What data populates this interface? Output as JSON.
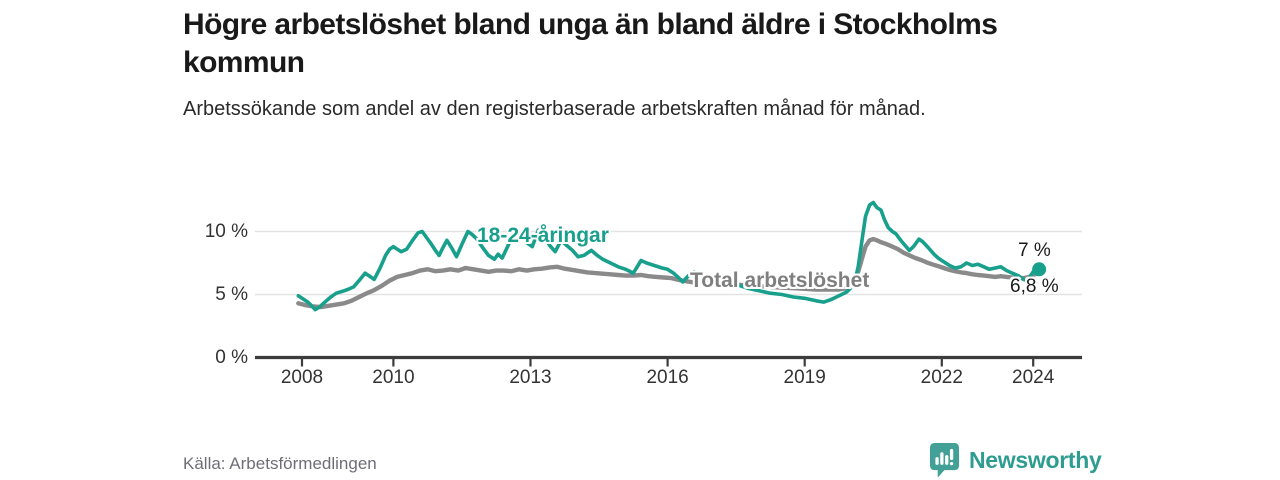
{
  "header": {
    "title": "Högre arbetslöshet bland unga än bland äldre i Stockholms kommun",
    "subtitle": "Arbetssökande som andel av den registerbaserade arbetskraften månad för månad."
  },
  "source": "Källa: Arbetsförmedlingen",
  "branding": {
    "name": "Newsworthy",
    "icon": "bar-chart-speech-bubble-icon",
    "word_color": "#2e9c90",
    "icon_color": "#43a096"
  },
  "colors": {
    "young": "#18a08d",
    "total": "#8a8a8a",
    "grid": "#e3e3e3",
    "axis": "#3c3c3c",
    "tick_text": "#333333"
  },
  "chart_data": {
    "type": "line",
    "title": "Högre arbetslöshet bland unga än bland äldre i Stockholms kommun",
    "unit": "%",
    "x_axis": {
      "ticks": [
        2008,
        2010,
        2013,
        2016,
        2019,
        2022,
        2024
      ],
      "range": [
        2007.9,
        2025.1
      ]
    },
    "y_axis": {
      "ticks": [
        {
          "value": 0,
          "label": "0 %"
        },
        {
          "value": 5,
          "label": "5 %"
        },
        {
          "value": 10,
          "label": "10 %"
        }
      ],
      "range": [
        0,
        13.3
      ],
      "grid": true
    },
    "legend": "inline-labels",
    "series": [
      {
        "name": "18-24-åringar",
        "color": "#18a08d",
        "latest_label": "7 %",
        "latest_value": 7.0,
        "end_dot": true,
        "points": [
          [
            2007.92,
            4.9
          ],
          [
            2008.0,
            4.7
          ],
          [
            2008.13,
            4.4
          ],
          [
            2008.21,
            4.1
          ],
          [
            2008.29,
            3.8
          ],
          [
            2008.38,
            4.0
          ],
          [
            2008.5,
            4.4
          ],
          [
            2008.63,
            4.8
          ],
          [
            2008.75,
            5.1
          ],
          [
            2008.88,
            5.25
          ],
          [
            2009.0,
            5.4
          ],
          [
            2009.13,
            5.6
          ],
          [
            2009.25,
            6.1
          ],
          [
            2009.38,
            6.7
          ],
          [
            2009.5,
            6.4
          ],
          [
            2009.58,
            6.2
          ],
          [
            2009.71,
            7.1
          ],
          [
            2009.83,
            8.1
          ],
          [
            2009.92,
            8.6
          ],
          [
            2010.0,
            8.8
          ],
          [
            2010.08,
            8.6
          ],
          [
            2010.17,
            8.4
          ],
          [
            2010.29,
            8.6
          ],
          [
            2010.42,
            9.3
          ],
          [
            2010.54,
            9.9
          ],
          [
            2010.63,
            10.0
          ],
          [
            2010.71,
            9.6
          ],
          [
            2010.83,
            9.0
          ],
          [
            2010.92,
            8.5
          ],
          [
            2011.0,
            8.1
          ],
          [
            2011.08,
            8.7
          ],
          [
            2011.17,
            9.3
          ],
          [
            2011.29,
            8.6
          ],
          [
            2011.38,
            8.0
          ],
          [
            2011.5,
            9.0
          ],
          [
            2011.63,
            10.0
          ],
          [
            2011.71,
            9.8
          ],
          [
            2011.83,
            9.4
          ],
          [
            2011.92,
            8.9
          ],
          [
            2012.0,
            8.5
          ],
          [
            2012.08,
            8.1
          ],
          [
            2012.21,
            7.8
          ],
          [
            2012.29,
            8.2
          ],
          [
            2012.38,
            7.9
          ],
          [
            2012.5,
            8.8
          ],
          [
            2012.63,
            9.9
          ],
          [
            2012.71,
            9.5
          ],
          [
            2012.83,
            9.6
          ],
          [
            2012.92,
            9.1
          ],
          [
            2013.04,
            8.8
          ],
          [
            2013.17,
            10.1
          ],
          [
            2013.29,
            9.6
          ],
          [
            2013.42,
            8.9
          ],
          [
            2013.54,
            8.4
          ],
          [
            2013.67,
            9.3
          ],
          [
            2013.79,
            8.9
          ],
          [
            2013.92,
            8.5
          ],
          [
            2014.04,
            8.0
          ],
          [
            2014.17,
            8.1
          ],
          [
            2014.33,
            8.5
          ],
          [
            2014.46,
            8.1
          ],
          [
            2014.58,
            7.8
          ],
          [
            2014.75,
            7.5
          ],
          [
            2014.92,
            7.2
          ],
          [
            2015.08,
            7.0
          ],
          [
            2015.25,
            6.7
          ],
          [
            2015.42,
            7.7
          ],
          [
            2015.54,
            7.5
          ],
          [
            2015.71,
            7.3
          ],
          [
            2015.88,
            7.1
          ],
          [
            2016.0,
            7.0
          ],
          [
            2016.13,
            6.7
          ],
          [
            2016.25,
            6.3
          ],
          [
            2016.33,
            6.0
          ],
          [
            2016.46,
            6.5
          ],
          [
            2016.58,
            6.8
          ],
          [
            2016.71,
            6.6
          ],
          [
            2016.88,
            6.4
          ],
          [
            2017.04,
            6.2
          ],
          [
            2017.25,
            6.0
          ],
          [
            2017.5,
            5.8
          ],
          [
            2017.75,
            5.5
          ],
          [
            2018.0,
            5.3
          ],
          [
            2018.25,
            5.1
          ],
          [
            2018.5,
            5.0
          ],
          [
            2018.75,
            4.8
          ],
          [
            2019.0,
            4.7
          ],
          [
            2019.25,
            4.5
          ],
          [
            2019.42,
            4.4
          ],
          [
            2019.58,
            4.6
          ],
          [
            2019.75,
            4.9
          ],
          [
            2019.92,
            5.2
          ],
          [
            2020.08,
            5.8
          ],
          [
            2020.17,
            7.2
          ],
          [
            2020.25,
            9.2
          ],
          [
            2020.33,
            11.2
          ],
          [
            2020.42,
            12.1
          ],
          [
            2020.5,
            12.3
          ],
          [
            2020.58,
            11.9
          ],
          [
            2020.67,
            11.7
          ],
          [
            2020.75,
            10.9
          ],
          [
            2020.83,
            10.3
          ],
          [
            2020.92,
            10.0
          ],
          [
            2021.0,
            9.8
          ],
          [
            2021.08,
            9.4
          ],
          [
            2021.17,
            9.0
          ],
          [
            2021.29,
            8.5
          ],
          [
            2021.38,
            8.8
          ],
          [
            2021.5,
            9.4
          ],
          [
            2021.58,
            9.2
          ],
          [
            2021.71,
            8.7
          ],
          [
            2021.83,
            8.2
          ],
          [
            2021.92,
            7.9
          ],
          [
            2022.04,
            7.6
          ],
          [
            2022.17,
            7.3
          ],
          [
            2022.29,
            7.1
          ],
          [
            2022.42,
            7.2
          ],
          [
            2022.54,
            7.5
          ],
          [
            2022.67,
            7.3
          ],
          [
            2022.79,
            7.4
          ],
          [
            2022.92,
            7.2
          ],
          [
            2023.04,
            7.0
          ],
          [
            2023.17,
            7.1
          ],
          [
            2023.29,
            7.2
          ],
          [
            2023.42,
            6.9
          ],
          [
            2023.54,
            6.7
          ],
          [
            2023.67,
            6.5
          ],
          [
            2023.79,
            6.2
          ],
          [
            2023.88,
            6.1
          ],
          [
            2023.96,
            6.6
          ],
          [
            2024.04,
            7.0
          ],
          [
            2024.13,
            7.0
          ]
        ]
      },
      {
        "name": "Total arbetslöshet",
        "color": "#8a8a8a",
        "latest_label": "6,8 %",
        "latest_value": 6.8,
        "end_dot": false,
        "points": [
          [
            2007.92,
            4.3
          ],
          [
            2008.08,
            4.15
          ],
          [
            2008.25,
            4.05
          ],
          [
            2008.42,
            4.0
          ],
          [
            2008.58,
            4.1
          ],
          [
            2008.75,
            4.2
          ],
          [
            2008.92,
            4.3
          ],
          [
            2009.08,
            4.5
          ],
          [
            2009.25,
            4.8
          ],
          [
            2009.42,
            5.1
          ],
          [
            2009.58,
            5.35
          ],
          [
            2009.75,
            5.7
          ],
          [
            2009.92,
            6.1
          ],
          [
            2010.08,
            6.4
          ],
          [
            2010.25,
            6.55
          ],
          [
            2010.42,
            6.7
          ],
          [
            2010.58,
            6.9
          ],
          [
            2010.75,
            7.0
          ],
          [
            2010.92,
            6.85
          ],
          [
            2011.08,
            6.9
          ],
          [
            2011.25,
            7.0
          ],
          [
            2011.42,
            6.9
          ],
          [
            2011.58,
            7.1
          ],
          [
            2011.75,
            7.0
          ],
          [
            2011.92,
            6.9
          ],
          [
            2012.08,
            6.8
          ],
          [
            2012.25,
            6.9
          ],
          [
            2012.42,
            6.9
          ],
          [
            2012.58,
            6.85
          ],
          [
            2012.75,
            7.0
          ],
          [
            2012.92,
            6.9
          ],
          [
            2013.08,
            7.0
          ],
          [
            2013.25,
            7.05
          ],
          [
            2013.42,
            7.15
          ],
          [
            2013.58,
            7.2
          ],
          [
            2013.75,
            7.05
          ],
          [
            2013.92,
            6.95
          ],
          [
            2014.08,
            6.85
          ],
          [
            2014.25,
            6.75
          ],
          [
            2014.42,
            6.7
          ],
          [
            2014.58,
            6.65
          ],
          [
            2014.75,
            6.6
          ],
          [
            2014.92,
            6.55
          ],
          [
            2015.08,
            6.5
          ],
          [
            2015.25,
            6.5
          ],
          [
            2015.42,
            6.55
          ],
          [
            2015.58,
            6.45
          ],
          [
            2015.75,
            6.4
          ],
          [
            2015.92,
            6.35
          ],
          [
            2016.08,
            6.3
          ],
          [
            2016.25,
            6.15
          ],
          [
            2016.42,
            6.05
          ],
          [
            2016.58,
            5.95
          ],
          [
            2016.75,
            5.95
          ],
          [
            2016.92,
            5.9
          ],
          [
            2017.25,
            5.85
          ],
          [
            2017.5,
            5.8
          ],
          [
            2017.75,
            5.7
          ],
          [
            2018.0,
            5.65
          ],
          [
            2018.25,
            5.6
          ],
          [
            2018.5,
            5.55
          ],
          [
            2018.75,
            5.5
          ],
          [
            2019.0,
            5.45
          ],
          [
            2019.25,
            5.4
          ],
          [
            2019.5,
            5.4
          ],
          [
            2019.75,
            5.4
          ],
          [
            2019.92,
            5.5
          ],
          [
            2020.08,
            5.9
          ],
          [
            2020.17,
            6.8
          ],
          [
            2020.25,
            7.8
          ],
          [
            2020.33,
            8.8
          ],
          [
            2020.42,
            9.3
          ],
          [
            2020.5,
            9.4
          ],
          [
            2020.58,
            9.3
          ],
          [
            2020.67,
            9.15
          ],
          [
            2020.79,
            9.0
          ],
          [
            2020.92,
            8.8
          ],
          [
            2021.04,
            8.6
          ],
          [
            2021.17,
            8.3
          ],
          [
            2021.29,
            8.1
          ],
          [
            2021.42,
            7.9
          ],
          [
            2021.54,
            7.75
          ],
          [
            2021.67,
            7.55
          ],
          [
            2021.79,
            7.4
          ],
          [
            2021.92,
            7.25
          ],
          [
            2022.04,
            7.1
          ],
          [
            2022.17,
            6.95
          ],
          [
            2022.29,
            6.85
          ],
          [
            2022.42,
            6.75
          ],
          [
            2022.54,
            6.7
          ],
          [
            2022.67,
            6.6
          ],
          [
            2022.79,
            6.55
          ],
          [
            2022.92,
            6.5
          ],
          [
            2023.04,
            6.45
          ],
          [
            2023.17,
            6.4
          ],
          [
            2023.29,
            6.45
          ],
          [
            2023.42,
            6.4
          ],
          [
            2023.54,
            6.35
          ],
          [
            2023.67,
            6.3
          ],
          [
            2023.79,
            6.3
          ],
          [
            2023.92,
            6.4
          ],
          [
            2024.04,
            6.6
          ],
          [
            2024.13,
            6.8
          ]
        ]
      }
    ]
  }
}
